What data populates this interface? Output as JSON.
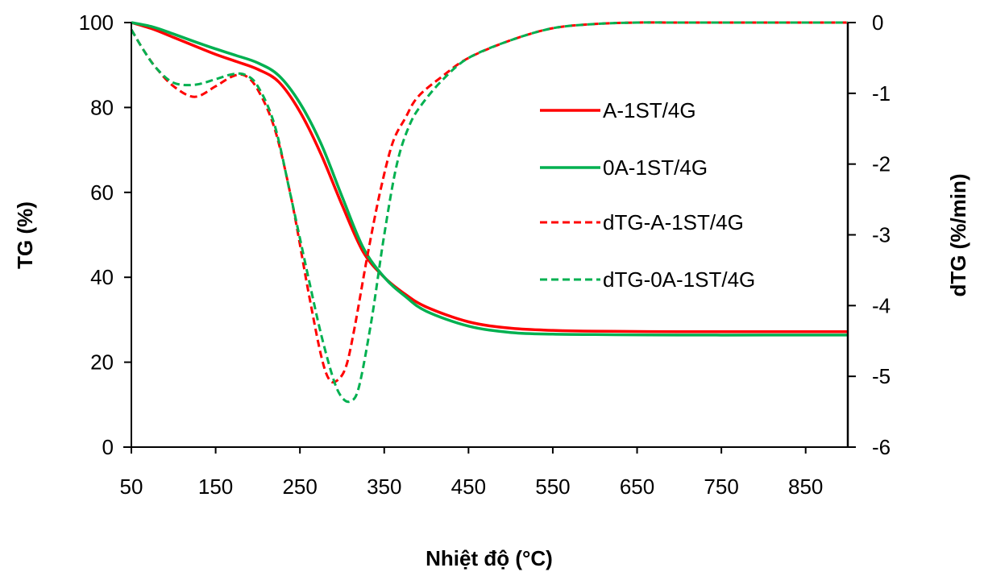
{
  "chart_data": {
    "type": "line",
    "xlabel": "Nhiệt độ (°C)",
    "ylabel": "TG (%)",
    "y2label": "dTG (%/min)",
    "xlim": [
      50,
      900
    ],
    "ylim": [
      0,
      100
    ],
    "y2lim": [
      -6,
      0
    ],
    "x_ticks": [
      "50",
      "150",
      "250",
      "350",
      "450",
      "550",
      "650",
      "750",
      "850"
    ],
    "x_tick_values": [
      50,
      150,
      250,
      350,
      450,
      550,
      650,
      750,
      850
    ],
    "y_ticks": [
      "0",
      "20",
      "40",
      "60",
      "80",
      "100"
    ],
    "y_tick_values": [
      0,
      20,
      40,
      60,
      80,
      100
    ],
    "y2_ticks": [
      "0",
      "-1",
      "-2",
      "-3",
      "-4",
      "-5",
      "-6"
    ],
    "y2_tick_values": [
      0,
      -1,
      -2,
      -3,
      -4,
      -5,
      -6
    ],
    "grid": false,
    "legend_position": "right",
    "series": [
      {
        "name": "A-1ST/4G",
        "axis": "left",
        "color": "#ff0000",
        "dash": "solid",
        "x": [
          50,
          75,
          100,
          125,
          150,
          175,
          200,
          225,
          250,
          275,
          300,
          325,
          350,
          375,
          400,
          450,
          500,
          550,
          600,
          700,
          800,
          900
        ],
        "y": [
          100,
          98.5,
          96.5,
          94.5,
          92.5,
          90.8,
          89,
          86,
          79,
          69,
          57,
          46,
          40,
          36,
          33,
          29.5,
          28,
          27.5,
          27.3,
          27.2,
          27.2,
          27.2
        ]
      },
      {
        "name": "0A-1ST/4G",
        "axis": "left",
        "color": "#00b050",
        "dash": "solid",
        "x": [
          50,
          75,
          100,
          125,
          150,
          175,
          200,
          225,
          250,
          275,
          300,
          325,
          350,
          375,
          400,
          450,
          500,
          550,
          600,
          700,
          800,
          900
        ],
        "y": [
          100,
          99,
          97.3,
          95.5,
          93.8,
          92.2,
          90.5,
          87.5,
          81,
          71.5,
          59,
          47,
          40,
          35.5,
          32,
          28.5,
          27,
          26.6,
          26.5,
          26.4,
          26.4,
          26.4
        ]
      },
      {
        "name": "dTG-A-1ST/4G",
        "axis": "right",
        "color": "#ff0000",
        "dash": "dashed",
        "x": [
          50,
          65,
          80,
          100,
          125,
          150,
          170,
          185,
          200,
          220,
          240,
          260,
          275,
          285,
          295,
          305,
          315,
          330,
          345,
          360,
          375,
          390,
          420,
          450,
          500,
          550,
          600,
          650,
          700,
          800,
          900
        ],
        "y": [
          -0.1,
          -0.4,
          -0.65,
          -0.9,
          -1.05,
          -0.9,
          -0.76,
          -0.75,
          -0.95,
          -1.5,
          -2.5,
          -3.8,
          -4.7,
          -5.05,
          -5.05,
          -4.85,
          -4.3,
          -3.3,
          -2.4,
          -1.7,
          -1.35,
          -1.05,
          -0.75,
          -0.5,
          -0.25,
          -0.08,
          -0.02,
          0,
          0,
          0,
          0
        ]
      },
      {
        "name": "dTG-0A-1ST/4G",
        "axis": "right",
        "color": "#00b050",
        "dash": "dashed",
        "x": [
          50,
          65,
          80,
          100,
          125,
          150,
          170,
          185,
          200,
          220,
          240,
          260,
          275,
          290,
          300,
          310,
          320,
          335,
          350,
          365,
          380,
          395,
          420,
          450,
          500,
          550,
          600,
          650,
          700,
          800,
          900
        ],
        "y": [
          -0.1,
          -0.4,
          -0.65,
          -0.85,
          -0.88,
          -0.8,
          -0.73,
          -0.74,
          -0.9,
          -1.45,
          -2.5,
          -3.6,
          -4.4,
          -5.05,
          -5.3,
          -5.35,
          -5.15,
          -4.2,
          -3.0,
          -2.0,
          -1.45,
          -1.15,
          -0.8,
          -0.5,
          -0.25,
          -0.08,
          -0.02,
          0,
          0,
          0,
          0
        ]
      }
    ]
  }
}
